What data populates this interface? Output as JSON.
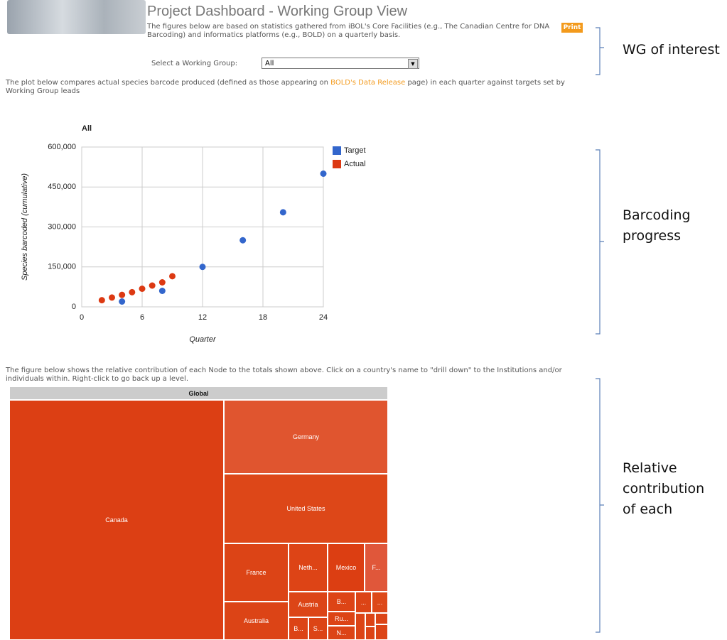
{
  "header": {
    "title": "Project Dashboard - Working Group View",
    "description": "The figures below are based on statistics gathered from iBOL's Core Facilities (e.g., The Canadian Centre for DNA Barcoding) and informatics platforms (e.g., BOLD) on a quarterly basis.",
    "print": "Print"
  },
  "selector": {
    "label": "Select a Working Group:",
    "value": "All"
  },
  "plot_intro": {
    "before": "The plot below compares actual species barcode produced (defined as those appearing on ",
    "link": "BOLD's Data Release",
    "after": " page) in each quarter against targets set by Working Group leads"
  },
  "chart_data": {
    "type": "scatter",
    "title": "All",
    "x_label": "Quarter",
    "y_label": "Species barcoded (cumulative)",
    "xlim": [
      0,
      24
    ],
    "xticks": [
      0,
      6,
      12,
      18,
      24
    ],
    "ylim": [
      0,
      600000
    ],
    "yticks": [
      0,
      {
        "value": 150000,
        "label": "150,000"
      },
      {
        "value": 300000,
        "label": "300,000"
      },
      {
        "value": 450000,
        "label": "450,000"
      },
      {
        "value": 600000,
        "label": "600,000"
      }
    ],
    "grid": true,
    "legend": "right",
    "series": [
      {
        "name": "Target",
        "color": "#3366cc",
        "x": [
          4,
          8,
          12,
          16,
          20,
          24
        ],
        "values": [
          20000,
          60000,
          150000,
          250000,
          355000,
          500000
        ]
      },
      {
        "name": "Actual",
        "color": "#dc3912",
        "x": [
          2,
          3,
          4,
          5,
          6,
          7,
          8,
          9
        ],
        "values": [
          25000,
          35000,
          45000,
          55000,
          68000,
          80000,
          92000,
          115000
        ]
      }
    ]
  },
  "treemap_intro": "The figure below shows the relative contribution of each Node to the totals shown above. Click on a country's name to \"drill down\" to the Institutions and/or individuals within. Right-click to go back up a level.",
  "treemap": {
    "root": "Global",
    "nodes": [
      "Canada",
      "Germany",
      "United States",
      "France",
      "Australia",
      "Neth...",
      "Mexico",
      "F...",
      "Austria",
      "B...",
      "S...",
      "B...",
      "Ru...",
      "N...",
      "...",
      "..."
    ]
  },
  "annotations": [
    "WG of interest",
    "Barcoding progress",
    "Relative contribution of each"
  ]
}
